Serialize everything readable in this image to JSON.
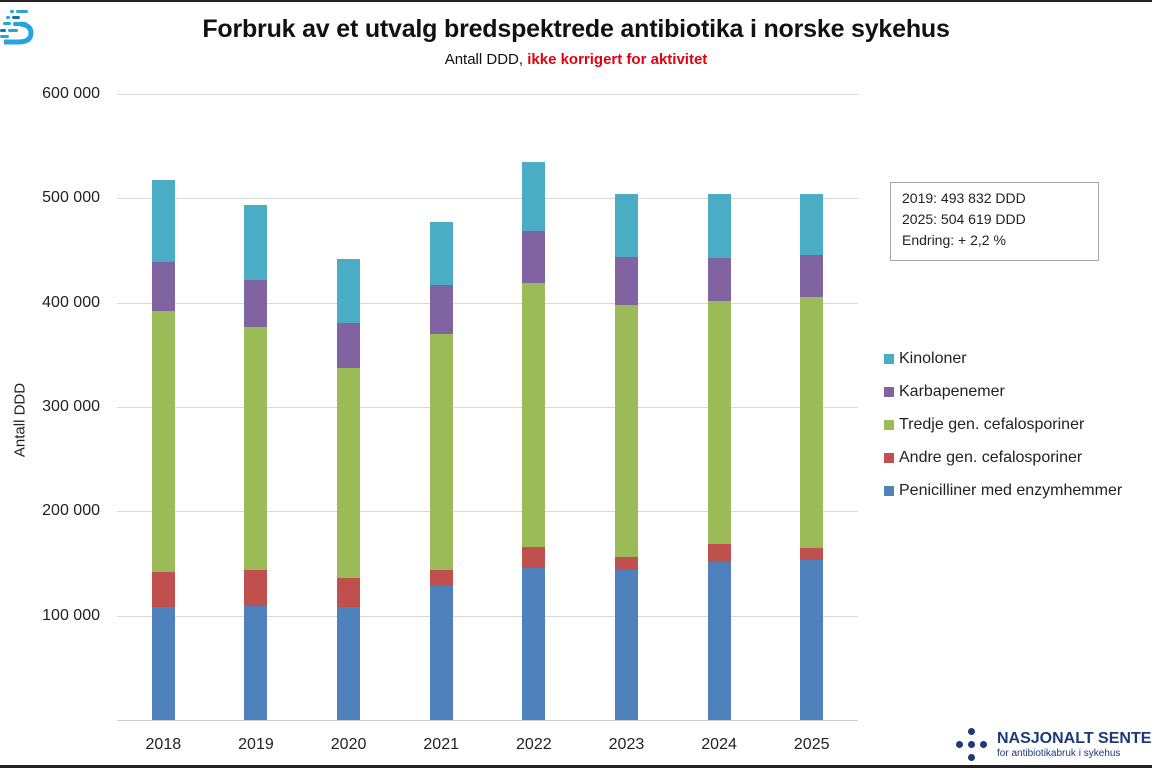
{
  "header": {
    "title": "Forbruk av et utvalg bredspektrede antibiotika i norske sykehus",
    "subtitle_prefix": "Antall DDD, ",
    "subtitle_highlight": "ikke korrigert for aktivitet",
    "highlight_color": "#e3000f"
  },
  "infobox": {
    "line1": "2019: 493 832 DDD",
    "line2": "2025: 504 619 DDD",
    "line3": "Endring: + 2,2 %"
  },
  "axis": {
    "ylabel": "Antall DDD",
    "yticks": [
      "600 000",
      "500 000",
      "400 000",
      "300 000",
      "200 000",
      "100 000",
      ""
    ],
    "xticks": [
      "2018",
      "2019",
      "2020",
      "2021",
      "2022",
      "2023",
      "2024",
      "2025"
    ]
  },
  "legend": [
    {
      "label": "Kinoloner",
      "color": "#4bacc6"
    },
    {
      "label": "Karbapenemer",
      "color": "#8064a2"
    },
    {
      "label": "Tredje gen. cefalosporiner",
      "color": "#9bbb59"
    },
    {
      "label": "Andre gen. cefalosporiner",
      "color": "#c0504d"
    },
    {
      "label": "Penicilliner med enzymhemmer",
      "color": "#4f81bd"
    }
  ],
  "footer_logo": {
    "name": "NASJONALT SENTE",
    "subtitle": "for antibiotikabruk i sykehus"
  },
  "chart_data": {
    "type": "bar",
    "stacked": true,
    "title": "Forbruk av et utvalg bredspektrede antibiotika i norske sykehus",
    "subtitle": "Antall DDD, ikke korrigert for aktivitet",
    "xlabel": "",
    "ylabel": "Antall DDD",
    "ylim": [
      0,
      600000
    ],
    "yticks": [
      0,
      100000,
      200000,
      300000,
      400000,
      500000,
      600000
    ],
    "grid": true,
    "legend_position": "right",
    "categories": [
      "2018",
      "2019",
      "2020",
      "2021",
      "2022",
      "2023",
      "2024",
      "2025"
    ],
    "series": [
      {
        "name": "Penicilliner med enzymhemmer",
        "color": "#4f81bd",
        "values": [
          108000,
          109000,
          108000,
          128000,
          146000,
          144000,
          151000,
          153000
        ]
      },
      {
        "name": "Andre gen. cefalosporiner",
        "color": "#c0504d",
        "values": [
          34000,
          35000,
          28000,
          16000,
          20000,
          12000,
          18000,
          12000
        ]
      },
      {
        "name": "Tredje gen. cefalosporiner",
        "color": "#9bbb59",
        "values": [
          250000,
          233000,
          201000,
          226000,
          253000,
          242000,
          233000,
          240000
        ]
      },
      {
        "name": "Karbapenemer",
        "color": "#8064a2",
        "values": [
          47000,
          45000,
          44000,
          47000,
          50000,
          46000,
          41000,
          41000
        ]
      },
      {
        "name": "Kinoloner",
        "color": "#4bacc6",
        "values": [
          79000,
          72000,
          61000,
          60000,
          66000,
          60000,
          61000,
          58000
        ]
      }
    ],
    "totals": [
      518000,
      494000,
      442000,
      477000,
      535000,
      504000,
      504000,
      504000
    ],
    "annotations": [
      "2019: 493 832 DDD",
      "2025: 504 619 DDD",
      "Endring: + 2,2 %"
    ]
  }
}
